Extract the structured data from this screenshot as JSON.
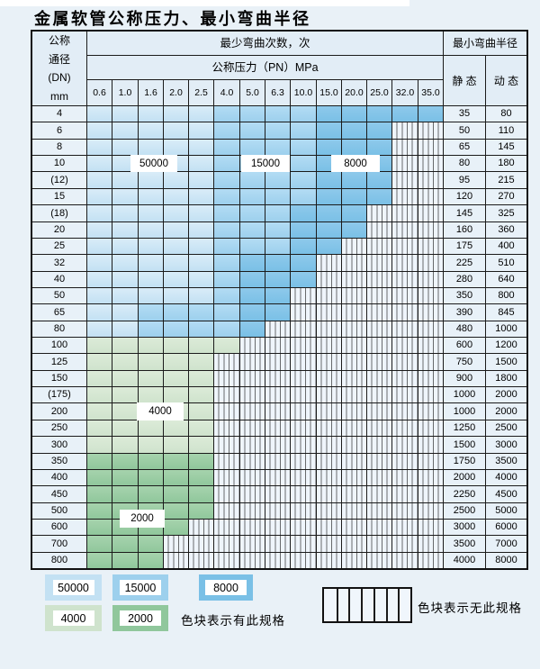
{
  "title": "金属软管公称压力、最小弯曲半径",
  "table": {
    "header": {
      "dn_lines": [
        "公称",
        "通径",
        "(DN)",
        "mm"
      ],
      "bend_cycles": "最少弯曲次数，次",
      "pressure": "公称压力（PN）MPa",
      "pressure_values": [
        "0.6",
        "1.0",
        "1.6",
        "2.0",
        "2.5",
        "4.0",
        "5.0",
        "6.3",
        "10.0",
        "15.0",
        "20.0",
        "25.0",
        "32.0",
        "35.0"
      ],
      "radius": "最小弯曲半径",
      "static": "静 态",
      "dynamic": "动 态"
    },
    "rows": [
      {
        "dn": "4",
        "static": "35",
        "dynamic": "80",
        "zone": "blue",
        "spans": [
          5,
          4,
          5
        ]
      },
      {
        "dn": "6",
        "static": "50",
        "dynamic": "110",
        "zone": "blue",
        "spans": [
          5,
          4,
          3
        ]
      },
      {
        "dn": "8",
        "static": "65",
        "dynamic": "145",
        "zone": "blue",
        "spans": [
          5,
          4,
          3
        ]
      },
      {
        "dn": "10",
        "static": "80",
        "dynamic": "180",
        "zone": "blue",
        "spans": [
          5,
          4,
          3
        ]
      },
      {
        "dn": "(12)",
        "static": "95",
        "dynamic": "215",
        "zone": "blue",
        "spans": [
          5,
          4,
          3
        ]
      },
      {
        "dn": "15",
        "static": "120",
        "dynamic": "270",
        "zone": "blue",
        "spans": [
          5,
          4,
          3
        ]
      },
      {
        "dn": "(18)",
        "static": "145",
        "dynamic": "325",
        "zone": "blue",
        "spans": [
          5,
          3,
          3
        ]
      },
      {
        "dn": "20",
        "static": "160",
        "dynamic": "360",
        "zone": "blue",
        "spans": [
          5,
          3,
          3
        ]
      },
      {
        "dn": "25",
        "static": "175",
        "dynamic": "400",
        "zone": "blue",
        "spans": [
          5,
          3,
          2
        ]
      },
      {
        "dn": "32",
        "static": "225",
        "dynamic": "510",
        "zone": "blue",
        "spans": [
          5,
          1,
          3
        ]
      },
      {
        "dn": "40",
        "static": "280",
        "dynamic": "640",
        "zone": "blue",
        "spans": [
          5,
          1,
          3
        ]
      },
      {
        "dn": "50",
        "static": "350",
        "dynamic": "800",
        "zone": "blue",
        "spans": [
          5,
          1,
          2
        ]
      },
      {
        "dn": "65",
        "static": "390",
        "dynamic": "845",
        "zone": "blue",
        "spans": [
          2,
          4,
          2
        ]
      },
      {
        "dn": "80",
        "static": "480",
        "dynamic": "1000",
        "zone": "blue",
        "spans": [
          2,
          4,
          1
        ]
      },
      {
        "dn": "100",
        "static": "600",
        "dynamic": "1200",
        "zone": "green1",
        "spans": [
          6
        ]
      },
      {
        "dn": "125",
        "static": "750",
        "dynamic": "1500",
        "zone": "green1",
        "spans": [
          5
        ]
      },
      {
        "dn": "150",
        "static": "900",
        "dynamic": "1800",
        "zone": "green1",
        "spans": [
          5
        ]
      },
      {
        "dn": "(175)",
        "static": "1000",
        "dynamic": "2000",
        "zone": "green1",
        "spans": [
          5
        ]
      },
      {
        "dn": "200",
        "static": "1000",
        "dynamic": "2000",
        "zone": "green1",
        "spans": [
          5
        ]
      },
      {
        "dn": "250",
        "static": "1250",
        "dynamic": "2500",
        "zone": "green1",
        "spans": [
          5
        ]
      },
      {
        "dn": "300",
        "static": "1500",
        "dynamic": "3000",
        "zone": "green1",
        "spans": [
          5
        ]
      },
      {
        "dn": "350",
        "static": "1750",
        "dynamic": "3500",
        "zone": "green2",
        "spans": [
          5
        ]
      },
      {
        "dn": "400",
        "static": "2000",
        "dynamic": "4000",
        "zone": "green2",
        "spans": [
          5
        ]
      },
      {
        "dn": "450",
        "static": "2250",
        "dynamic": "4500",
        "zone": "green2",
        "spans": [
          5
        ]
      },
      {
        "dn": "500",
        "static": "2500",
        "dynamic": "5000",
        "zone": "green2",
        "spans": [
          5
        ]
      },
      {
        "dn": "600",
        "static": "3000",
        "dynamic": "6000",
        "zone": "green2",
        "spans": [
          4
        ]
      },
      {
        "dn": "700",
        "static": "3500",
        "dynamic": "7000",
        "zone": "green2",
        "spans": [
          3
        ]
      },
      {
        "dn": "800",
        "static": "4000",
        "dynamic": "8000",
        "zone": "green2",
        "spans": [
          3
        ]
      }
    ]
  },
  "zone_labels": [
    "50000",
    "15000",
    "8000",
    "4000",
    "2000"
  ],
  "legend": {
    "chips": [
      {
        "label": "50000",
        "key": "b1"
      },
      {
        "label": "15000",
        "key": "b2"
      },
      {
        "label": "8000",
        "key": "b3"
      },
      {
        "label": "4000",
        "key": "g1"
      },
      {
        "label": "2000",
        "key": "g2"
      }
    ],
    "has_spec": "色块表示有此规格",
    "no_spec": "色块表示无此规格"
  },
  "chart_data": {
    "type": "heatmap",
    "title": "金属软管公称压力、最小弯曲半径",
    "x_label": "公称压力（PN）MPa",
    "x_categories": [
      0.6,
      1.0,
      1.6,
      2.0,
      2.5,
      4.0,
      5.0,
      6.3,
      10.0,
      15.0,
      20.0,
      25.0,
      32.0,
      35.0
    ],
    "y_label": "公称通径 (DN) mm",
    "y_categories": [
      "4",
      "6",
      "8",
      "10",
      "(12)",
      "15",
      "(18)",
      "20",
      "25",
      "32",
      "40",
      "50",
      "65",
      "80",
      "100",
      "125",
      "150",
      "(175)",
      "200",
      "250",
      "300",
      "350",
      "400",
      "450",
      "500",
      "600",
      "700",
      "800"
    ],
    "cell_meaning": "最少弯曲次数，次 (minimum bend cycles); hatched blank = 无此规格",
    "bend_cycle_zones": [
      {
        "dn": "4",
        "50000": [
          0.6,
          2.5
        ],
        "15000": [
          4.0,
          10.0
        ],
        "8000": [
          15.0,
          35.0
        ]
      },
      {
        "dn": "6",
        "50000": [
          0.6,
          2.5
        ],
        "15000": [
          4.0,
          10.0
        ],
        "8000": [
          15.0,
          25.0
        ]
      },
      {
        "dn": "8",
        "50000": [
          0.6,
          2.5
        ],
        "15000": [
          4.0,
          10.0
        ],
        "8000": [
          15.0,
          25.0
        ]
      },
      {
        "dn": "10",
        "50000": [
          0.6,
          2.5
        ],
        "15000": [
          4.0,
          10.0
        ],
        "8000": [
          15.0,
          25.0
        ]
      },
      {
        "dn": "(12)",
        "50000": [
          0.6,
          2.5
        ],
        "15000": [
          4.0,
          10.0
        ],
        "8000": [
          15.0,
          25.0
        ]
      },
      {
        "dn": "15",
        "50000": [
          0.6,
          2.5
        ],
        "15000": [
          4.0,
          10.0
        ],
        "8000": [
          15.0,
          25.0
        ]
      },
      {
        "dn": "(18)",
        "50000": [
          0.6,
          2.5
        ],
        "15000": [
          4.0,
          6.3
        ],
        "8000": [
          10.0,
          20.0
        ]
      },
      {
        "dn": "20",
        "50000": [
          0.6,
          2.5
        ],
        "15000": [
          4.0,
          6.3
        ],
        "8000": [
          10.0,
          20.0
        ]
      },
      {
        "dn": "25",
        "50000": [
          0.6,
          2.5
        ],
        "15000": [
          4.0,
          6.3
        ],
        "8000": [
          10.0,
          15.0
        ]
      },
      {
        "dn": "32",
        "50000": [
          0.6,
          2.5
        ],
        "15000": [
          4.0,
          4.0
        ],
        "8000": [
          5.0,
          10.0
        ]
      },
      {
        "dn": "40",
        "50000": [
          0.6,
          2.5
        ],
        "15000": [
          4.0,
          4.0
        ],
        "8000": [
          5.0,
          10.0
        ]
      },
      {
        "dn": "50",
        "50000": [
          0.6,
          2.5
        ],
        "15000": [
          4.0,
          4.0
        ],
        "8000": [
          5.0,
          6.3
        ]
      },
      {
        "dn": "65",
        "50000": [
          0.6,
          1.0
        ],
        "15000": [
          1.6,
          4.0
        ],
        "8000": [
          5.0,
          6.3
        ]
      },
      {
        "dn": "80",
        "50000": [
          0.6,
          1.0
        ],
        "15000": [
          1.6,
          4.0
        ],
        "8000": [
          5.0,
          5.0
        ]
      },
      {
        "dn": "100",
        "4000": [
          0.6,
          4.0
        ]
      },
      {
        "dn": "125",
        "4000": [
          0.6,
          2.5
        ]
      },
      {
        "dn": "150",
        "4000": [
          0.6,
          2.5
        ]
      },
      {
        "dn": "(175)",
        "4000": [
          0.6,
          2.5
        ]
      },
      {
        "dn": "200",
        "4000": [
          0.6,
          2.5
        ]
      },
      {
        "dn": "250",
        "4000": [
          0.6,
          2.5
        ]
      },
      {
        "dn": "300",
        "4000": [
          0.6,
          2.5
        ]
      },
      {
        "dn": "350",
        "2000": [
          0.6,
          2.5
        ]
      },
      {
        "dn": "400",
        "2000": [
          0.6,
          2.5
        ]
      },
      {
        "dn": "450",
        "2000": [
          0.6,
          2.5
        ]
      },
      {
        "dn": "500",
        "2000": [
          0.6,
          2.5
        ]
      },
      {
        "dn": "600",
        "2000": [
          0.6,
          2.0
        ]
      },
      {
        "dn": "700",
        "2000": [
          0.6,
          1.6
        ]
      },
      {
        "dn": "800",
        "2000": [
          0.6,
          1.6
        ]
      }
    ],
    "series": [
      {
        "name": "静态 (static min bend radius, mm)",
        "values": [
          35,
          50,
          65,
          80,
          95,
          120,
          145,
          160,
          175,
          225,
          280,
          350,
          390,
          480,
          600,
          750,
          900,
          1000,
          1000,
          1250,
          1500,
          1750,
          2000,
          2250,
          2500,
          3000,
          3500,
          4000
        ]
      },
      {
        "name": "动态 (dynamic min bend radius, mm)",
        "values": [
          80,
          110,
          145,
          180,
          215,
          270,
          325,
          360,
          400,
          510,
          640,
          800,
          845,
          1000,
          1200,
          1500,
          1800,
          2000,
          2000,
          2500,
          3000,
          3500,
          4000,
          4500,
          5000,
          6000,
          7000,
          8000
        ]
      }
    ],
    "legend_entries": [
      "50000",
      "15000",
      "8000",
      "4000",
      "2000",
      "色块表示有此规格",
      "色块表示无此规格"
    ]
  },
  "colors": {
    "page_bg": "#e9f1f7",
    "head": "#e2edf6",
    "label_bg": "#e8f1f8",
    "hatch_bg": "#eff5fb",
    "border": "#1b1b1b",
    "b1": [
      "#d9ecf8",
      "#c3e1f3"
    ],
    "b2": [
      "#b3dcf4",
      "#9dd0ed"
    ],
    "b3": [
      "#8ec9eb",
      "#7ac0e6"
    ],
    "g1": [
      "#dcebd8",
      "#cfe3cd"
    ],
    "g2": [
      "#a6d3ad",
      "#90c79c"
    ]
  }
}
